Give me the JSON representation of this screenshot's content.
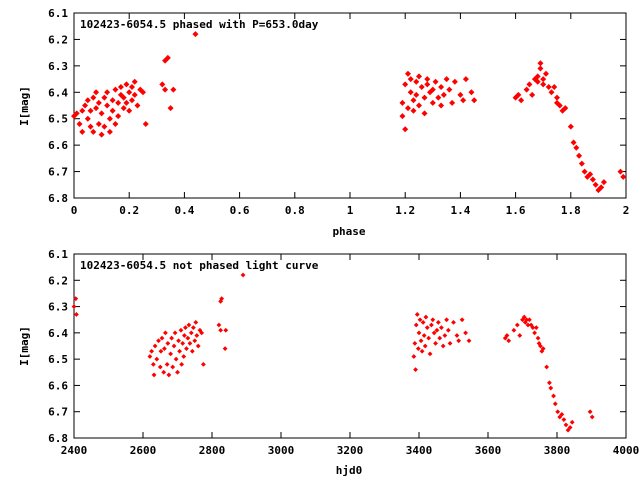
{
  "chart_data": [
    {
      "type": "scatter",
      "title": "102423-6054.5 phased with P=653.0day",
      "xlabel": "phase",
      "ylabel": "I[mag]",
      "xlim": [
        0,
        2
      ],
      "ylim": [
        6.1,
        6.8
      ],
      "y_inverted": true,
      "grid": false,
      "marker_color": "#ff0000",
      "x_ticks": [
        0,
        0.2,
        0.4,
        0.6,
        0.8,
        1,
        1.2,
        1.4,
        1.6,
        1.8,
        2
      ],
      "x_tick_labels": [
        "0",
        "0.2",
        "0.4",
        "0.6",
        "0.8",
        "1",
        "1.2",
        "1.4",
        "1.6",
        "1.8",
        "2"
      ],
      "y_ticks": [
        6.1,
        6.2,
        6.3,
        6.4,
        6.5,
        6.6,
        6.7,
        6.8
      ],
      "y_tick_labels": [
        "6.1",
        "6.2",
        "6.3",
        "6.4",
        "6.5",
        "6.6",
        "6.7",
        "6.8"
      ],
      "points": [
        [
          0.0,
          6.49
        ],
        [
          0.01,
          6.48
        ],
        [
          0.02,
          6.52
        ],
        [
          0.03,
          6.47
        ],
        [
          0.03,
          6.55
        ],
        [
          0.04,
          6.45
        ],
        [
          0.05,
          6.5
        ],
        [
          0.05,
          6.43
        ],
        [
          0.06,
          6.53
        ],
        [
          0.06,
          6.47
        ],
        [
          0.07,
          6.42
        ],
        [
          0.07,
          6.55
        ],
        [
          0.08,
          6.46
        ],
        [
          0.08,
          6.4
        ],
        [
          0.09,
          6.52
        ],
        [
          0.09,
          6.44
        ],
        [
          0.1,
          6.56
        ],
        [
          0.1,
          6.48
        ],
        [
          0.11,
          6.42
        ],
        [
          0.11,
          6.53
        ],
        [
          0.12,
          6.45
        ],
        [
          0.12,
          6.4
        ],
        [
          0.13,
          6.5
        ],
        [
          0.13,
          6.55
        ],
        [
          0.14,
          6.43
        ],
        [
          0.14,
          6.47
        ],
        [
          0.15,
          6.39
        ],
        [
          0.15,
          6.52
        ],
        [
          0.16,
          6.44
        ],
        [
          0.16,
          6.49
        ],
        [
          0.17,
          6.41
        ],
        [
          0.17,
          6.38
        ],
        [
          0.18,
          6.46
        ],
        [
          0.18,
          6.42
        ],
        [
          0.19,
          6.37
        ],
        [
          0.19,
          6.44
        ],
        [
          0.2,
          6.4
        ],
        [
          0.2,
          6.47
        ],
        [
          0.21,
          6.38
        ],
        [
          0.21,
          6.43
        ],
        [
          0.22,
          6.36
        ],
        [
          0.22,
          6.41
        ],
        [
          0.23,
          6.45
        ],
        [
          0.24,
          6.39
        ],
        [
          0.25,
          6.4
        ],
        [
          0.26,
          6.52
        ],
        [
          0.32,
          6.37
        ],
        [
          0.33,
          6.39
        ],
        [
          0.33,
          6.28
        ],
        [
          0.34,
          6.27
        ],
        [
          0.35,
          6.46
        ],
        [
          0.36,
          6.39
        ],
        [
          0.44,
          6.18
        ],
        [
          1.19,
          6.49
        ],
        [
          1.19,
          6.44
        ],
        [
          1.2,
          6.54
        ],
        [
          1.2,
          6.37
        ],
        [
          1.21,
          6.33
        ],
        [
          1.21,
          6.46
        ],
        [
          1.22,
          6.4
        ],
        [
          1.22,
          6.35
        ],
        [
          1.23,
          6.43
        ],
        [
          1.23,
          6.47
        ],
        [
          1.24,
          6.36
        ],
        [
          1.24,
          6.41
        ],
        [
          1.25,
          6.45
        ],
        [
          1.25,
          6.34
        ],
        [
          1.26,
          6.38
        ],
        [
          1.27,
          6.42
        ],
        [
          1.27,
          6.48
        ],
        [
          1.28,
          6.37
        ],
        [
          1.28,
          6.35
        ],
        [
          1.29,
          6.4
        ],
        [
          1.3,
          6.44
        ],
        [
          1.3,
          6.39
        ],
        [
          1.31,
          6.36
        ],
        [
          1.32,
          6.42
        ],
        [
          1.33,
          6.38
        ],
        [
          1.33,
          6.45
        ],
        [
          1.34,
          6.41
        ],
        [
          1.35,
          6.35
        ],
        [
          1.36,
          6.39
        ],
        [
          1.37,
          6.44
        ],
        [
          1.38,
          6.36
        ],
        [
          1.4,
          6.41
        ],
        [
          1.41,
          6.43
        ],
        [
          1.42,
          6.35
        ],
        [
          1.44,
          6.4
        ],
        [
          1.45,
          6.43
        ],
        [
          1.6,
          6.42
        ],
        [
          1.61,
          6.41
        ],
        [
          1.62,
          6.43
        ],
        [
          1.64,
          6.39
        ],
        [
          1.65,
          6.37
        ],
        [
          1.66,
          6.41
        ],
        [
          1.67,
          6.35
        ],
        [
          1.68,
          6.34
        ],
        [
          1.68,
          6.36
        ],
        [
          1.69,
          6.29
        ],
        [
          1.69,
          6.31
        ],
        [
          1.7,
          6.35
        ],
        [
          1.7,
          6.37
        ],
        [
          1.71,
          6.33
        ],
        [
          1.72,
          6.38
        ],
        [
          1.73,
          6.4
        ],
        [
          1.74,
          6.38
        ],
        [
          1.75,
          6.42
        ],
        [
          1.75,
          6.44
        ],
        [
          1.76,
          6.45
        ],
        [
          1.77,
          6.47
        ],
        [
          1.78,
          6.46
        ],
        [
          1.8,
          6.53
        ],
        [
          1.81,
          6.59
        ],
        [
          1.82,
          6.61
        ],
        [
          1.83,
          6.64
        ],
        [
          1.84,
          6.67
        ],
        [
          1.85,
          6.7
        ],
        [
          1.86,
          6.72
        ],
        [
          1.87,
          6.71
        ],
        [
          1.88,
          6.73
        ],
        [
          1.89,
          6.75
        ],
        [
          1.9,
          6.77
        ],
        [
          1.91,
          6.76
        ],
        [
          1.92,
          6.74
        ],
        [
          1.98,
          6.7
        ],
        [
          1.99,
          6.72
        ]
      ]
    },
    {
      "type": "scatter",
      "title": "102423-6054.5 not phased light curve",
      "xlabel": "hjd0",
      "ylabel": "I[mag]",
      "xlim": [
        2400,
        4000
      ],
      "ylim": [
        6.1,
        6.8
      ],
      "y_inverted": true,
      "grid": false,
      "marker_color": "#ff0000",
      "x_ticks": [
        2400,
        2600,
        2800,
        3000,
        3200,
        3400,
        3600,
        3800,
        4000
      ],
      "x_tick_labels": [
        "2400",
        "2600",
        "2800",
        "3000",
        "3200",
        "3400",
        "3600",
        "3800",
        "4000"
      ],
      "y_ticks": [
        6.1,
        6.2,
        6.3,
        6.4,
        6.5,
        6.6,
        6.7,
        6.8
      ],
      "y_tick_labels": [
        "6.1",
        "6.2",
        "6.3",
        "6.4",
        "6.5",
        "6.6",
        "6.7",
        "6.8"
      ],
      "points": [
        [
          2400,
          6.3
        ],
        [
          2405,
          6.27
        ],
        [
          2407,
          6.33
        ],
        [
          2620,
          6.49
        ],
        [
          2625,
          6.47
        ],
        [
          2630,
          6.52
        ],
        [
          2632,
          6.56
        ],
        [
          2635,
          6.45
        ],
        [
          2640,
          6.5
        ],
        [
          2645,
          6.43
        ],
        [
          2650,
          6.53
        ],
        [
          2652,
          6.47
        ],
        [
          2655,
          6.42
        ],
        [
          2660,
          6.55
        ],
        [
          2662,
          6.46
        ],
        [
          2665,
          6.4
        ],
        [
          2670,
          6.52
        ],
        [
          2672,
          6.44
        ],
        [
          2675,
          6.56
        ],
        [
          2680,
          6.48
        ],
        [
          2683,
          6.42
        ],
        [
          2686,
          6.53
        ],
        [
          2690,
          6.45
        ],
        [
          2693,
          6.4
        ],
        [
          2696,
          6.5
        ],
        [
          2700,
          6.55
        ],
        [
          2703,
          6.43
        ],
        [
          2706,
          6.47
        ],
        [
          2710,
          6.39
        ],
        [
          2712,
          6.52
        ],
        [
          2715,
          6.44
        ],
        [
          2718,
          6.49
        ],
        [
          2720,
          6.41
        ],
        [
          2723,
          6.38
        ],
        [
          2726,
          6.46
        ],
        [
          2730,
          6.42
        ],
        [
          2733,
          6.37
        ],
        [
          2736,
          6.44
        ],
        [
          2740,
          6.4
        ],
        [
          2743,
          6.47
        ],
        [
          2746,
          6.38
        ],
        [
          2750,
          6.43
        ],
        [
          2753,
          6.36
        ],
        [
          2756,
          6.41
        ],
        [
          2760,
          6.45
        ],
        [
          2765,
          6.39
        ],
        [
          2770,
          6.4
        ],
        [
          2775,
          6.52
        ],
        [
          2820,
          6.37
        ],
        [
          2825,
          6.39
        ],
        [
          2825,
          6.28
        ],
        [
          2828,
          6.27
        ],
        [
          2838,
          6.46
        ],
        [
          2840,
          6.39
        ],
        [
          2890,
          6.18
        ],
        [
          3385,
          6.49
        ],
        [
          3388,
          6.44
        ],
        [
          3390,
          6.54
        ],
        [
          3392,
          6.37
        ],
        [
          3395,
          6.33
        ],
        [
          3398,
          6.46
        ],
        [
          3400,
          6.4
        ],
        [
          3403,
          6.35
        ],
        [
          3406,
          6.43
        ],
        [
          3409,
          6.47
        ],
        [
          3412,
          6.36
        ],
        [
          3415,
          6.41
        ],
        [
          3418,
          6.45
        ],
        [
          3420,
          6.34
        ],
        [
          3424,
          6.38
        ],
        [
          3428,
          6.42
        ],
        [
          3432,
          6.48
        ],
        [
          3436,
          6.37
        ],
        [
          3440,
          6.35
        ],
        [
          3444,
          6.4
        ],
        [
          3448,
          6.44
        ],
        [
          3452,
          6.39
        ],
        [
          3456,
          6.36
        ],
        [
          3460,
          6.42
        ],
        [
          3465,
          6.38
        ],
        [
          3470,
          6.45
        ],
        [
          3475,
          6.41
        ],
        [
          3480,
          6.35
        ],
        [
          3485,
          6.39
        ],
        [
          3490,
          6.44
        ],
        [
          3500,
          6.36
        ],
        [
          3510,
          6.41
        ],
        [
          3515,
          6.43
        ],
        [
          3525,
          6.35
        ],
        [
          3535,
          6.4
        ],
        [
          3545,
          6.43
        ],
        [
          3650,
          6.42
        ],
        [
          3655,
          6.41
        ],
        [
          3660,
          6.43
        ],
        [
          3675,
          6.39
        ],
        [
          3685,
          6.37
        ],
        [
          3692,
          6.41
        ],
        [
          3700,
          6.35
        ],
        [
          3705,
          6.34
        ],
        [
          3708,
          6.36
        ],
        [
          3712,
          6.35
        ],
        [
          3716,
          6.37
        ],
        [
          3720,
          6.35
        ],
        [
          3725,
          6.37
        ],
        [
          3730,
          6.38
        ],
        [
          3735,
          6.4
        ],
        [
          3740,
          6.38
        ],
        [
          3745,
          6.42
        ],
        [
          3748,
          6.44
        ],
        [
          3752,
          6.45
        ],
        [
          3756,
          6.47
        ],
        [
          3760,
          6.46
        ],
        [
          3770,
          6.53
        ],
        [
          3778,
          6.59
        ],
        [
          3782,
          6.61
        ],
        [
          3790,
          6.64
        ],
        [
          3795,
          6.67
        ],
        [
          3802,
          6.7
        ],
        [
          3808,
          6.72
        ],
        [
          3814,
          6.71
        ],
        [
          3820,
          6.73
        ],
        [
          3826,
          6.75
        ],
        [
          3832,
          6.77
        ],
        [
          3838,
          6.76
        ],
        [
          3844,
          6.74
        ],
        [
          3896,
          6.7
        ],
        [
          3902,
          6.72
        ]
      ]
    }
  ]
}
